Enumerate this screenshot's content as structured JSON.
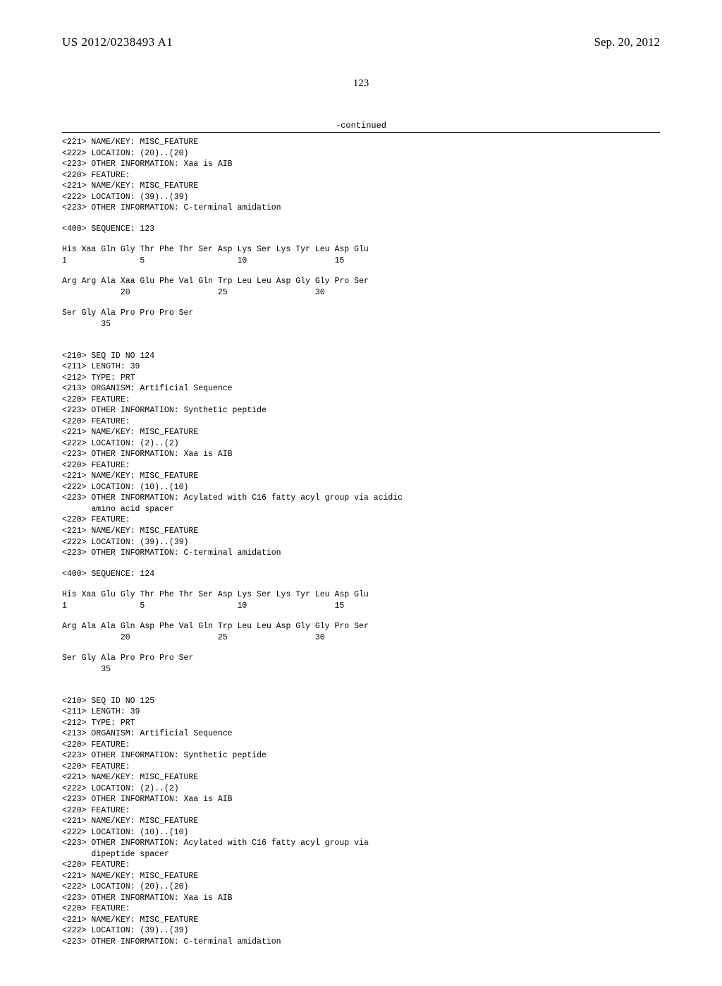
{
  "header": {
    "pub_number": "US 2012/0238493 A1",
    "pub_date": "Sep. 20, 2012"
  },
  "page_number": "123",
  "continued_label": "-continued",
  "blocks": [
    {
      "lines": [
        "<221> NAME/KEY: MISC_FEATURE",
        "<222> LOCATION: (20)..(20)",
        "<223> OTHER INFORMATION: Xaa is AIB",
        "<220> FEATURE:",
        "<221> NAME/KEY: MISC_FEATURE",
        "<222> LOCATION: (39)..(39)",
        "<223> OTHER INFORMATION: C-terminal amidation"
      ]
    },
    {
      "lines": [
        "<400> SEQUENCE: 123"
      ]
    },
    {
      "lines": [
        "His Xaa Gln Gly Thr Phe Thr Ser Asp Lys Ser Lys Tyr Leu Asp Glu",
        "1               5                   10                  15"
      ]
    },
    {
      "lines": [
        "Arg Arg Ala Xaa Glu Phe Val Gln Trp Leu Leu Asp Gly Gly Pro Ser",
        "            20                  25                  30"
      ]
    },
    {
      "lines": [
        "Ser Gly Ala Pro Pro Pro Ser",
        "        35"
      ]
    },
    {
      "lines": [
        "",
        "<210> SEQ ID NO 124",
        "<211> LENGTH: 39",
        "<212> TYPE: PRT",
        "<213> ORGANISM: Artificial Sequence",
        "<220> FEATURE:",
        "<223> OTHER INFORMATION: Synthetic peptide",
        "<220> FEATURE:",
        "<221> NAME/KEY: MISC_FEATURE",
        "<222> LOCATION: (2)..(2)",
        "<223> OTHER INFORMATION: Xaa is AIB",
        "<220> FEATURE:",
        "<221> NAME/KEY: MISC_FEATURE",
        "<222> LOCATION: (10)..(10)",
        "<223> OTHER INFORMATION: Acylated with C16 fatty acyl group via acidic",
        "      amino acid spacer",
        "<220> FEATURE:",
        "<221> NAME/KEY: MISC_FEATURE",
        "<222> LOCATION: (39)..(39)",
        "<223> OTHER INFORMATION: C-terminal amidation"
      ]
    },
    {
      "lines": [
        "<400> SEQUENCE: 124"
      ]
    },
    {
      "lines": [
        "His Xaa Glu Gly Thr Phe Thr Ser Asp Lys Ser Lys Tyr Leu Asp Glu",
        "1               5                   10                  15"
      ]
    },
    {
      "lines": [
        "Arg Ala Ala Gln Asp Phe Val Gln Trp Leu Leu Asp Gly Gly Pro Ser",
        "            20                  25                  30"
      ]
    },
    {
      "lines": [
        "Ser Gly Ala Pro Pro Pro Ser",
        "        35"
      ]
    },
    {
      "lines": [
        "",
        "<210> SEQ ID NO 125",
        "<211> LENGTH: 39",
        "<212> TYPE: PRT",
        "<213> ORGANISM: Artificial Sequence",
        "<220> FEATURE:",
        "<223> OTHER INFORMATION: Synthetic peptide",
        "<220> FEATURE:",
        "<221> NAME/KEY: MISC_FEATURE",
        "<222> LOCATION: (2)..(2)",
        "<223> OTHER INFORMATION: Xaa is AIB",
        "<220> FEATURE:",
        "<221> NAME/KEY: MISC_FEATURE",
        "<222> LOCATION: (10)..(10)",
        "<223> OTHER INFORMATION: Acylated with C16 fatty acyl group via",
        "      dipeptide spacer",
        "<220> FEATURE:",
        "<221> NAME/KEY: MISC_FEATURE",
        "<222> LOCATION: (20)..(20)",
        "<223> OTHER INFORMATION: Xaa is AIB",
        "<220> FEATURE:",
        "<221> NAME/KEY: MISC_FEATURE",
        "<222> LOCATION: (39)..(39)",
        "<223> OTHER INFORMATION: C-terminal amidation"
      ]
    }
  ]
}
